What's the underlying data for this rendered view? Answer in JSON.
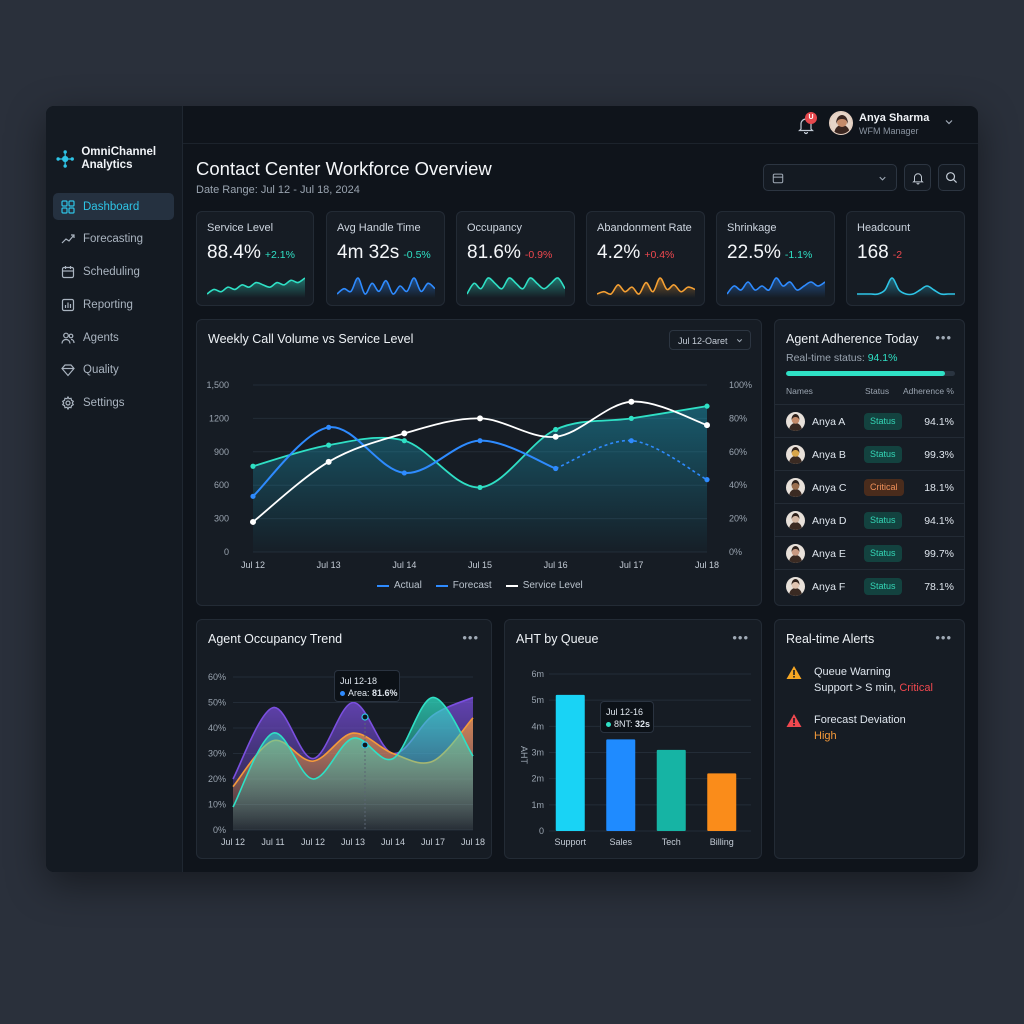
{
  "app": {
    "name": "OmniChannel Analytics"
  },
  "sidebar": {
    "items": [
      {
        "label": "Dashboard",
        "icon": "dashboard-icon",
        "active": true
      },
      {
        "label": "Forecasting",
        "icon": "trend-icon"
      },
      {
        "label": "Scheduling",
        "icon": "calendar-icon"
      },
      {
        "label": "Reporting",
        "icon": "report-icon"
      },
      {
        "label": "Agents",
        "icon": "users-icon"
      },
      {
        "label": "Quality",
        "icon": "diamond-icon"
      },
      {
        "label": "Settings",
        "icon": "gear-icon"
      }
    ]
  },
  "topbar": {
    "notif_count": "U",
    "user_name": "Anya Sharma",
    "user_role": "WFM Manager"
  },
  "page": {
    "title": "Contact Center Workforce Overview",
    "date_range": "Date Range: Jul 12 - Jul 18, 2024"
  },
  "kpis": [
    {
      "label": "Service Level",
      "value": "88.4%",
      "delta": "+2.1%",
      "trend": "up",
      "color": "#2fe0c5",
      "spark": [
        4,
        6,
        5,
        7,
        6,
        8,
        7,
        9,
        8,
        7,
        9,
        8,
        10,
        9,
        11
      ]
    },
    {
      "label": "Avg Handle Time",
      "value": "4m 32s",
      "delta": "-0.5%",
      "trend": "down",
      "color": "#2e8bff",
      "spark": [
        3,
        5,
        4,
        9,
        3,
        7,
        4,
        8,
        3,
        6,
        4,
        9,
        4,
        7,
        5
      ]
    },
    {
      "label": "Occupancy",
      "value": "81.6%",
      "delta": "-0.9%",
      "trend": "down",
      "color": "#2fe0c5",
      "spark": [
        5,
        7,
        6,
        8,
        7,
        6,
        8,
        7,
        6,
        8,
        7,
        6,
        7,
        8,
        6
      ]
    },
    {
      "label": "Abandonment Rate",
      "value": "4.2%",
      "delta": "+0.4%",
      "trend": "up",
      "color": "#f5a033",
      "spark": [
        3,
        4,
        3,
        7,
        4,
        6,
        3,
        8,
        4,
        10,
        5,
        7,
        4,
        6,
        5
      ]
    },
    {
      "label": "Shrinkage",
      "value": "22.5%",
      "delta": "-1.1%",
      "trend": "down",
      "color": "#2e8bff",
      "spark": [
        4,
        6,
        5,
        7,
        5,
        6,
        5,
        8,
        6,
        7,
        5,
        6,
        7,
        6,
        7
      ]
    },
    {
      "label": "Headcount",
      "value": "168",
      "delta": "-2",
      "trend": "down",
      "color": "#2ec4e6",
      "spark": [
        5,
        5,
        5,
        5,
        6,
        9,
        6,
        5,
        5,
        6,
        7,
        6,
        5,
        5,
        5
      ]
    }
  ],
  "weekly": {
    "title": "Weekly Call Volume vs Service Level",
    "dropdown": "Jul 12-Oaret",
    "legend": [
      "Actual",
      "Forecast",
      "Service Level"
    ]
  },
  "adherence": {
    "title": "Agent Adherence Today",
    "status_label": "Real-time status:",
    "status_value": "94.1%",
    "progress": 0.941,
    "headers": [
      "Names",
      "Status",
      "Adherence %"
    ],
    "rows": [
      {
        "name": "Anya A",
        "status": "Status",
        "kind": "ok",
        "pct": "94.1%",
        "skin": "#c48b6a"
      },
      {
        "name": "Anya B",
        "status": "Status",
        "kind": "ok",
        "pct": "99.3%",
        "skin": "#d9a64a"
      },
      {
        "name": "Anya C",
        "status": "Critical",
        "kind": "crit",
        "pct": "18.1%",
        "skin": "#9a6e4e"
      },
      {
        "name": "Anya D",
        "status": "Status",
        "kind": "ok",
        "pct": "94.1%",
        "skin": "#d4b8a4"
      },
      {
        "name": "Anya E",
        "status": "Status",
        "kind": "ok",
        "pct": "99.7%",
        "skin": "#c99a82"
      },
      {
        "name": "Anya F",
        "status": "Status",
        "kind": "ok",
        "pct": "78.1%",
        "skin": "#e0c4b0"
      }
    ]
  },
  "occupancy": {
    "title": "Agent Occupancy Trend",
    "tooltip_date": "Jul 12-18",
    "tooltip_label": "Area:",
    "tooltip_value": "81.6%"
  },
  "aht": {
    "title": "AHT by Queue",
    "tooltip_date": "Jul 12-16",
    "tooltip_label": "8NT:",
    "tooltip_value": "32s"
  },
  "alerts": {
    "title": "Real-time Alerts",
    "items": [
      {
        "line1": "Queue Warning",
        "line2": "Support > S min,",
        "tag": "Critical",
        "level": "warning"
      },
      {
        "line1": "Forecast Deviation",
        "line2": "",
        "tag": "High",
        "level": "danger"
      }
    ]
  },
  "chart_data": [
    {
      "type": "line",
      "title": "Weekly Call Volume vs Service Level",
      "x": [
        "Jul 12",
        "Jul 13",
        "Jul 14",
        "Jul 15",
        "Jul 16",
        "Jul 17",
        "Jul 18"
      ],
      "yticks": [
        "0",
        "300",
        "600",
        "900",
        "1200",
        "1,500"
      ],
      "y2ticks": [
        "0%",
        "20%",
        "40%",
        "60%",
        "80%",
        "100%"
      ],
      "ylim": [
        0,
        1500
      ],
      "y2lim": [
        0,
        100
      ],
      "series": [
        {
          "name": "Actual",
          "style": "solid",
          "color": "#2e8bff",
          "values": [
            500,
            1120,
            710,
            1000,
            750,
            null,
            null
          ]
        },
        {
          "name": "Forecast",
          "style": "dashed",
          "color": "#2e8bff",
          "values": [
            null,
            null,
            null,
            null,
            750,
            1000,
            650
          ]
        },
        {
          "name": "teal",
          "style": "solid",
          "color": "#2fe0c5",
          "values": [
            770,
            960,
            1000,
            580,
            1100,
            1200,
            1310
          ]
        },
        {
          "name": "Service Level",
          "style": "solid",
          "color": "#ffffff",
          "axis": "right",
          "values": [
            18,
            54,
            71,
            80,
            69,
            90,
            76
          ]
        }
      ]
    },
    {
      "type": "area",
      "title": "Agent Occupancy Trend",
      "x": [
        "Jul 12",
        "Jul 11",
        "Jul 12",
        "Jul 13",
        "Jul 14",
        "Jul 17",
        "Jul 18"
      ],
      "yticks": [
        "0%",
        "10%",
        "20%",
        "30%",
        "40%",
        "50%",
        "60%"
      ],
      "ylim": [
        0,
        60
      ],
      "series": [
        {
          "color": "#7b4fe0",
          "values": [
            20,
            48,
            28,
            50,
            30,
            45,
            52
          ]
        },
        {
          "color": "#f59a3a",
          "values": [
            17,
            35,
            27,
            38,
            30,
            27,
            44
          ]
        },
        {
          "color": "#2fe0c5",
          "values": [
            9,
            38,
            20,
            36,
            28,
            52,
            29
          ]
        }
      ]
    },
    {
      "type": "bar",
      "title": "AHT by Queue",
      "ylabel": "AHT",
      "categories": [
        "Support",
        "Sales",
        "Tech",
        "Billing"
      ],
      "values": [
        5.2,
        3.5,
        3.1,
        2.2
      ],
      "colors": [
        "#19d3f5",
        "#1f8bff",
        "#16b4a4",
        "#fa8c1a"
      ],
      "yticks": [
        "0",
        "1m",
        "2m",
        "3m",
        "4m",
        "5m",
        "6m"
      ],
      "ylim": [
        0,
        6
      ]
    }
  ]
}
